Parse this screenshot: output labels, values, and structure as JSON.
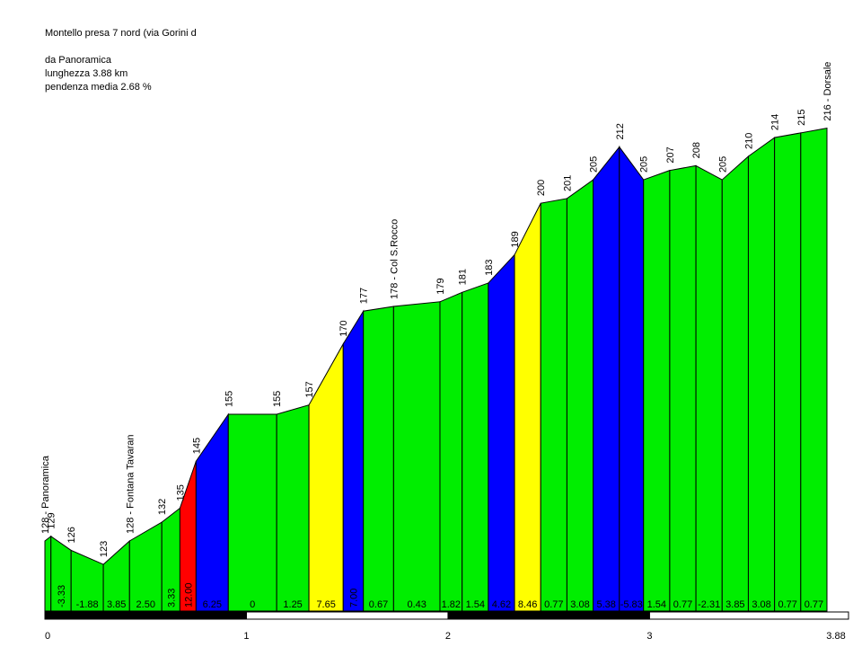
{
  "header": {
    "title": "Montello presa 7 nord (via Gorini d",
    "blank": "",
    "from": "da Panoramica",
    "length": "lunghezza 3.88 km",
    "avg_grade": "pendenza media 2.68 %"
  },
  "colors": {
    "flat": "#00ee00",
    "moderate": "#ffff00",
    "steep": "#0000ff",
    "very_steep": "#ff0000",
    "axis_dark": "#000000",
    "axis_light": "#ffffff"
  },
  "chart_data": {
    "type": "area",
    "title": "Montello presa 7 nord (via Gorini d",
    "xlabel": "",
    "ylabel": "",
    "xlim": [
      0,
      3.88
    ],
    "x_ticks": [
      "0",
      "1",
      "2",
      "3",
      "3.88"
    ],
    "x_tick_values": [
      0,
      1,
      2,
      3,
      3.88
    ],
    "points": [
      {
        "x": 0.0,
        "elev": 128,
        "label": "128 - Panoramica"
      },
      {
        "x": 0.03,
        "elev": 129,
        "label": "129"
      },
      {
        "x": 0.13,
        "elev": 126,
        "label": "126"
      },
      {
        "x": 0.29,
        "elev": 123,
        "label": "123"
      },
      {
        "x": 0.42,
        "elev": 128,
        "label": "128 - Fontana Tavaran"
      },
      {
        "x": 0.58,
        "elev": 132,
        "label": "132"
      },
      {
        "x": 0.67,
        "elev": 135,
        "label": "135"
      },
      {
        "x": 0.75,
        "elev": 145,
        "label": "145"
      },
      {
        "x": 0.91,
        "elev": 155,
        "label": "155"
      },
      {
        "x": 1.15,
        "elev": 155,
        "label": "155"
      },
      {
        "x": 1.31,
        "elev": 157,
        "label": "157"
      },
      {
        "x": 1.48,
        "elev": 170,
        "label": "170"
      },
      {
        "x": 1.58,
        "elev": 177,
        "label": "177"
      },
      {
        "x": 1.73,
        "elev": 178,
        "label": "178 - Col S.Rocco"
      },
      {
        "x": 1.96,
        "elev": 179,
        "label": "179"
      },
      {
        "x": 2.07,
        "elev": 181,
        "label": "181"
      },
      {
        "x": 2.2,
        "elev": 183,
        "label": "183"
      },
      {
        "x": 2.33,
        "elev": 189,
        "label": "189"
      },
      {
        "x": 2.46,
        "elev": 200,
        "label": "200"
      },
      {
        "x": 2.59,
        "elev": 201,
        "label": "201"
      },
      {
        "x": 2.72,
        "elev": 205,
        "label": "205"
      },
      {
        "x": 2.85,
        "elev": 212,
        "label": "212"
      },
      {
        "x": 2.97,
        "elev": 205,
        "label": "205"
      },
      {
        "x": 3.1,
        "elev": 207,
        "label": "207"
      },
      {
        "x": 3.23,
        "elev": 208,
        "label": "208"
      },
      {
        "x": 3.36,
        "elev": 205,
        "label": "205"
      },
      {
        "x": 3.49,
        "elev": 210,
        "label": "210"
      },
      {
        "x": 3.62,
        "elev": 214,
        "label": "214"
      },
      {
        "x": 3.75,
        "elev": 215,
        "label": "215"
      },
      {
        "x": 3.88,
        "elev": 216,
        "label": "216 - Dorsale"
      }
    ],
    "segment_grades": [
      "",
      "-3.33",
      "-1.88",
      "3.85",
      "2.50",
      "3.33",
      "12.00",
      "6.25",
      "0",
      "1.25",
      "7.65",
      "7.00",
      "0.67",
      "0.43",
      "1.82",
      "1.54",
      "4.62",
      "8.46",
      "0.77",
      "3.08",
      "5.38",
      "-5.83",
      "1.54",
      "0.77",
      "-2.31",
      "3.85",
      "3.08",
      "0.77",
      "0.77"
    ],
    "segment_class": [
      "flat",
      "flat",
      "flat",
      "flat",
      "flat",
      "flat",
      "very_steep",
      "steep",
      "flat",
      "flat",
      "moderate",
      "steep",
      "flat",
      "flat",
      "flat",
      "flat",
      "steep",
      "moderate",
      "flat",
      "flat",
      "steep",
      "steep",
      "flat",
      "flat",
      "flat",
      "flat",
      "flat",
      "flat",
      "flat"
    ]
  }
}
